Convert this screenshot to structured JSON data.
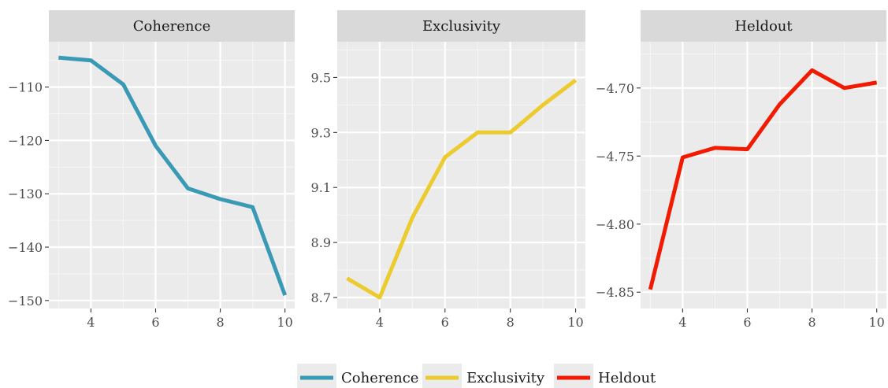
{
  "chart_data": [
    {
      "type": "line",
      "title": "Coherence",
      "x": [
        3,
        4,
        5,
        6,
        7,
        8,
        9,
        10
      ],
      "xticks": [
        4,
        6,
        8,
        10
      ],
      "xlim": [
        2.7,
        10.3
      ],
      "ylim": [
        -151.5,
        -101.5
      ],
      "yticks": [
        -110,
        -120,
        -130,
        -140,
        -150
      ],
      "grid": true,
      "series": [
        {
          "name": "Coherence",
          "color": "#3A9AB5",
          "values": [
            -104.5,
            -105.0,
            -109.5,
            -121.0,
            -129.0,
            -131.0,
            -132.5,
            -149.0
          ]
        }
      ]
    },
    {
      "type": "line",
      "title": "Exclusivity",
      "x": [
        3,
        4,
        5,
        6,
        7,
        8,
        9,
        10
      ],
      "xticks": [
        4,
        6,
        8,
        10
      ],
      "xlim": [
        2.7,
        10.3
      ],
      "ylim": [
        8.66,
        9.63
      ],
      "yticks": [
        8.7,
        8.9,
        9.1,
        9.3,
        9.5
      ],
      "grid": true,
      "series": [
        {
          "name": "Exclusivity",
          "color": "#EBCB2E",
          "values": [
            8.77,
            8.7,
            8.99,
            9.21,
            9.3,
            9.3,
            9.4,
            9.49
          ]
        }
      ]
    },
    {
      "type": "line",
      "title": "Heldout",
      "x": [
        3,
        4,
        5,
        6,
        7,
        8,
        9,
        10
      ],
      "xticks": [
        4,
        6,
        8,
        10
      ],
      "xlim": [
        2.7,
        10.3
      ],
      "ylim": [
        -4.862,
        -4.666
      ],
      "yticks": [
        -4.7,
        -4.75,
        -4.8,
        -4.85
      ],
      "grid": true,
      "series": [
        {
          "name": "Heldout",
          "color": "#F21A00",
          "values": [
            -4.848,
            -4.751,
            -4.744,
            -4.745,
            -4.712,
            -4.687,
            -4.7,
            -4.696
          ]
        }
      ]
    }
  ],
  "legend": {
    "position": "bottom",
    "items": [
      {
        "label": "Coherence",
        "color": "#3A9AB5"
      },
      {
        "label": "Exclusivity",
        "color": "#EBCB2E"
      },
      {
        "label": "Heldout",
        "color": "#F21A00"
      }
    ]
  }
}
